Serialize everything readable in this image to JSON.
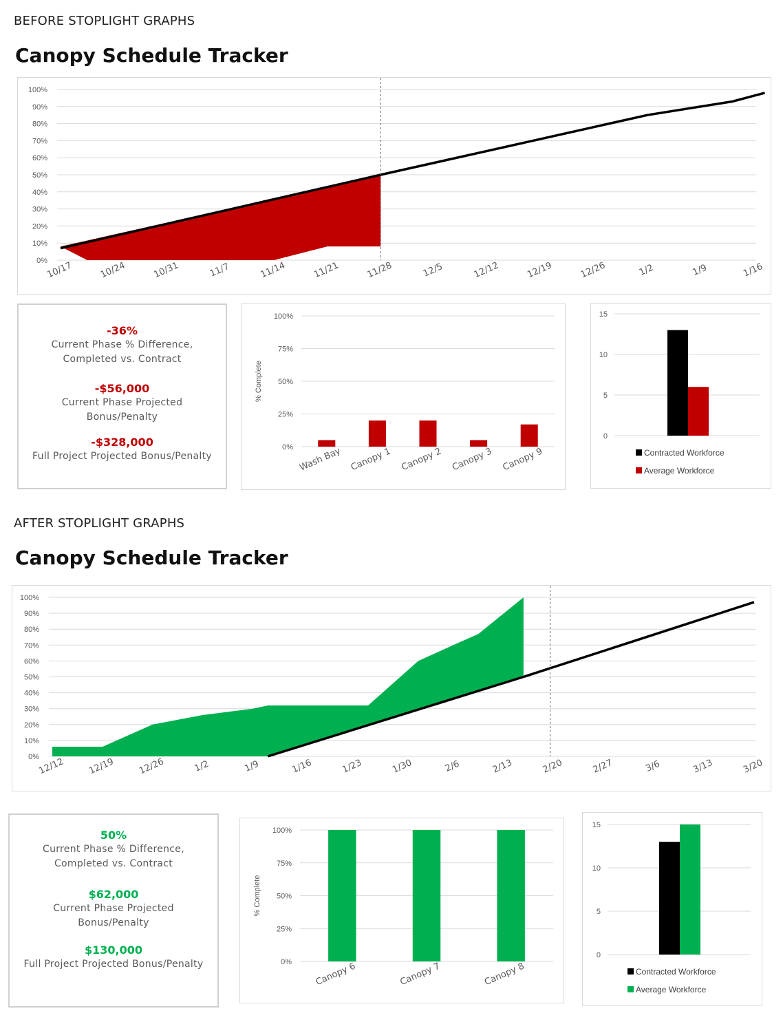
{
  "colors": {
    "red": "#c00000",
    "green": "#00b050",
    "black": "#000000",
    "grid": "#d9d9d9",
    "marker": "#7f7f7f"
  },
  "sections": [
    {
      "label": "BEFORE STOPLIGHT GRAPHS",
      "title": "Canopy Schedule Tracker",
      "kpis": [
        {
          "value": "-36%",
          "label1": "Current Phase % Difference,",
          "label2": "Completed vs. Contract"
        },
        {
          "value": "-$56,000",
          "label1": "Current Phase Projected",
          "label2": "Bonus/Penalty"
        },
        {
          "value": "-$328,000",
          "label1": "Full Project Projected Bonus/Penalty",
          "label2": ""
        }
      ],
      "chart_data": [
        {
          "type": "area",
          "x_labels": [
            "10/17",
            "10/24",
            "10/31",
            "11/7",
            "11/14",
            "11/21",
            "11/28",
            "12/5",
            "12/12",
            "12/19",
            "12/26",
            "1/2",
            "1/9",
            "1/16"
          ],
          "y_ticks": [
            "0%",
            "10%",
            "20%",
            "30%",
            "40%",
            "50%",
            "60%",
            "70%",
            "80%",
            "90%",
            "100%"
          ],
          "ylim": [
            0,
            100
          ],
          "status_date": "11/28",
          "series": [
            {
              "kind": "area",
              "color": "red",
              "points": [
                [
                  0,
                  8
                ],
                [
                  0.5,
                  0
                ],
                [
                  4,
                  0
                ],
                [
                  5,
                  8
                ],
                [
                  6,
                  8
                ],
                [
                  6,
                  50
                ]
              ]
            },
            {
              "kind": "line",
              "color": "black",
              "points": [
                [
                  0,
                  7
                ],
                [
                  6,
                  50
                ],
                [
                  7,
                  57
                ],
                [
                  8,
                  64
                ],
                [
                  9,
                  71
                ],
                [
                  10,
                  78
                ],
                [
                  11,
                  85
                ],
                [
                  12,
                  90
                ],
                [
                  12.6,
                  93
                ],
                [
                  13.2,
                  98
                ]
              ]
            }
          ]
        },
        {
          "type": "bar",
          "ylabel": "% Complete",
          "y_ticks": [
            "0%",
            "25%",
            "50%",
            "75%",
            "100%"
          ],
          "ylim": [
            0,
            100
          ],
          "categories": [
            "Wash Bay",
            "Canopy 1",
            "Canopy 2",
            "Canopy 3",
            "Canopy 9"
          ],
          "values": [
            5,
            20,
            20,
            5,
            17
          ],
          "color": "red"
        },
        {
          "type": "bar",
          "y_ticks": [
            "0",
            "5",
            "10",
            "15"
          ],
          "ylim": [
            0,
            15
          ],
          "series": [
            {
              "name": "Contracted Workforce",
              "value": 13,
              "color": "black"
            },
            {
              "name": "Average Workforce",
              "value": 6,
              "color": "red"
            }
          ]
        }
      ]
    },
    {
      "label": "AFTER STOPLIGHT GRAPHS",
      "title": "Canopy Schedule Tracker",
      "kpis": [
        {
          "value": "50%",
          "label1": "Current Phase % Difference,",
          "label2": "Completed vs. Contract"
        },
        {
          "value": "$62,000",
          "label1": "Current Phase Projected",
          "label2": "Bonus/Penalty"
        },
        {
          "value": "$130,000",
          "label1": "Full Project Projected Bonus/Penalty",
          "label2": ""
        }
      ],
      "chart_data": [
        {
          "type": "area",
          "x_labels": [
            "12/12",
            "12/19",
            "12/26",
            "1/2",
            "1/9",
            "1/16",
            "1/23",
            "1/30",
            "2/6",
            "2/13",
            "2/20",
            "2/27",
            "3/6",
            "3/13",
            "3/20"
          ],
          "y_ticks": [
            "0%",
            "10%",
            "20%",
            "30%",
            "40%",
            "50%",
            "60%",
            "70%",
            "80%",
            "90%",
            "100%"
          ],
          "ylim": [
            0,
            100
          ],
          "status_date": "2/20",
          "series": [
            {
              "kind": "area",
              "color": "green",
              "points": [
                [
                  0,
                  6
                ],
                [
                  1,
                  6
                ],
                [
                  2,
                  20
                ],
                [
                  3,
                  26
                ],
                [
                  4,
                  30
                ],
                [
                  4.3,
                  32
                ],
                [
                  6.3,
                  32
                ],
                [
                  7.3,
                  60
                ],
                [
                  8,
                  70
                ],
                [
                  8.5,
                  77
                ],
                [
                  9.4,
                  100
                ],
                [
                  9.4,
                  50
                ],
                [
                  4.3,
                  0
                ],
                [
                  0,
                  0
                ]
              ]
            },
            {
              "kind": "line",
              "color": "black",
              "points": [
                [
                  4.3,
                  0
                ],
                [
                  9.4,
                  50
                ],
                [
                  14,
                  97
                ]
              ]
            }
          ]
        },
        {
          "type": "bar",
          "ylabel": "% Complete",
          "y_ticks": [
            "0%",
            "25%",
            "50%",
            "75%",
            "100%"
          ],
          "ylim": [
            0,
            100
          ],
          "categories": [
            "Canopy 6",
            "Canopy 7",
            "Canopy 8"
          ],
          "values": [
            100,
            100,
            100
          ],
          "color": "green"
        },
        {
          "type": "bar",
          "y_ticks": [
            "0",
            "5",
            "10",
            "15"
          ],
          "ylim": [
            0,
            15
          ],
          "series": [
            {
              "name": "Contracted Workforce",
              "value": 13,
              "color": "black"
            },
            {
              "name": "Average Workforce",
              "value": 15,
              "color": "green"
            }
          ]
        }
      ]
    }
  ]
}
